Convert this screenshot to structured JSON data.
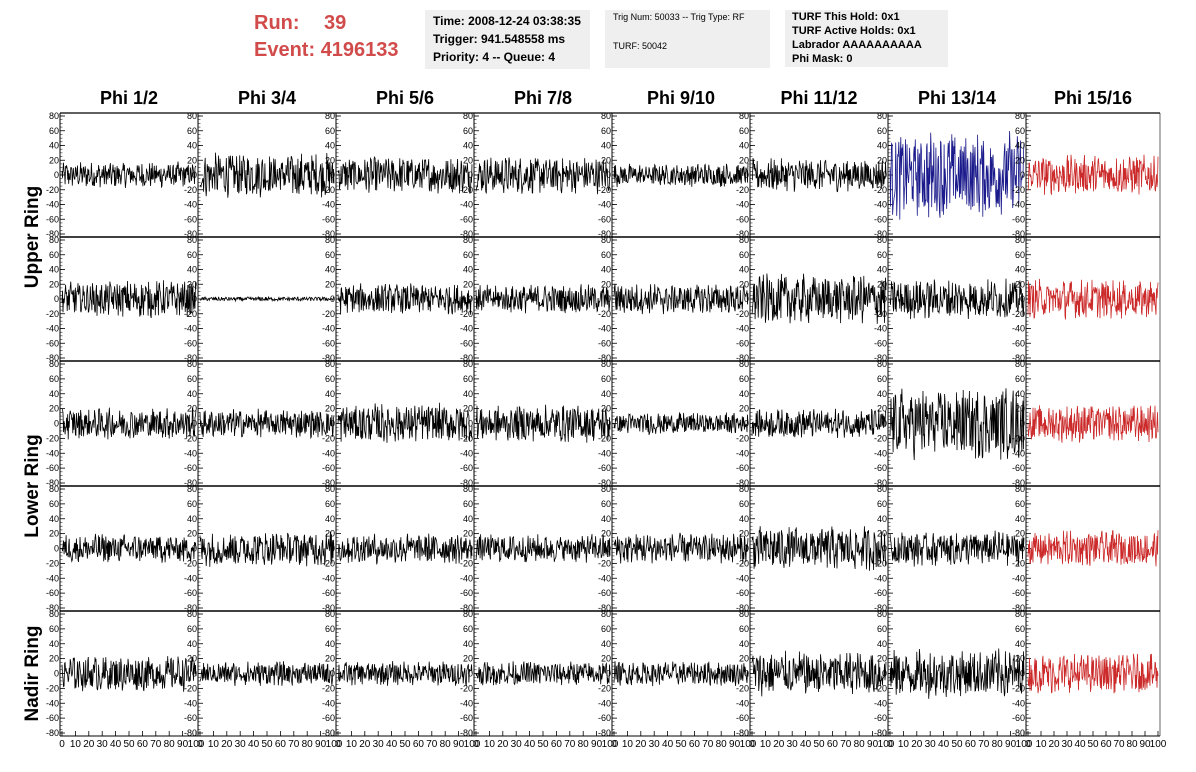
{
  "header": {
    "run_label": "Run:",
    "run_value": "39",
    "event_label": "Event:",
    "event_value": "4196133"
  },
  "info_boxes": {
    "time": "Time: 2008-12-24 03:38:35",
    "trigger": "Trigger: 941.548558 ms",
    "priority": "Priority: 4 -- Queue: 4",
    "trig_num": "Trig Num: 50033 -- Trig Type: RF",
    "turf": "TURF: 50042",
    "turf_this_hold": "TURF This Hold: 0x1",
    "turf_active_holds": "TURF Active Holds: 0x1",
    "labrador": "Labrador AAAAAAAAAA",
    "phi_mask": "Phi Mask: 0"
  },
  "colors": {
    "normal": "#000000",
    "blue": "#1a1a8c",
    "red": "#cc2a2a",
    "header_text": "#d14b4b",
    "box_bg": "#efefef"
  },
  "chart_data": {
    "type": "line",
    "columns": [
      "Phi 1/2",
      "Phi 3/4",
      "Phi 5/6",
      "Phi 7/8",
      "Phi 9/10",
      "Phi 11/12",
      "Phi 13/14",
      "Phi 15/16"
    ],
    "ring_labels": [
      "Upper Ring",
      "Lower Ring",
      "Nadir Ring"
    ],
    "rows": 5,
    "xlim": [
      0,
      100
    ],
    "ylim": [
      -80,
      80
    ],
    "x_ticks": [
      0,
      10,
      20,
      30,
      40,
      50,
      60,
      70,
      80,
      90,
      100
    ],
    "y_ticks": [
      -80,
      -60,
      -40,
      -20,
      0,
      20,
      40,
      60,
      80
    ],
    "amplitudes": [
      [
        12,
        20,
        17,
        17,
        11,
        15,
        40,
        18
      ],
      [
        17,
        2,
        14,
        13,
        14,
        23,
        18,
        18
      ],
      [
        14,
        13,
        18,
        17,
        10,
        13,
        32,
        17
      ],
      [
        13,
        16,
        14,
        13,
        14,
        20,
        16,
        16
      ],
      [
        16,
        11,
        11,
        11,
        11,
        20,
        22,
        18
      ]
    ],
    "panel_colors": [
      [
        "normal",
        "normal",
        "normal",
        "normal",
        "normal",
        "normal",
        "blue",
        "red"
      ],
      [
        "normal",
        "normal",
        "normal",
        "normal",
        "normal",
        "normal",
        "normal",
        "red"
      ],
      [
        "normal",
        "normal",
        "normal",
        "normal",
        "normal",
        "normal",
        "normal",
        "red"
      ],
      [
        "normal",
        "normal",
        "normal",
        "normal",
        "normal",
        "normal",
        "normal",
        "red"
      ],
      [
        "normal",
        "normal",
        "normal",
        "normal",
        "normal",
        "normal",
        "normal",
        "red"
      ]
    ]
  }
}
